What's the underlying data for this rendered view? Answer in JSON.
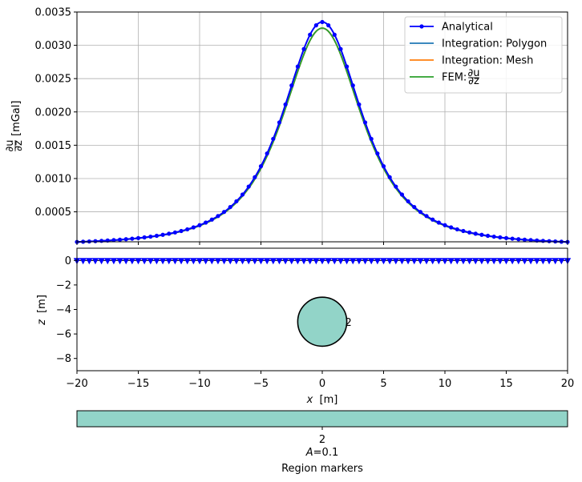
{
  "chart_data": [
    {
      "type": "line",
      "ylabel_num": "∂u",
      "ylabel_den": "∂z",
      "ylabel_unit": "[mGal]",
      "xlim": [
        -20,
        20
      ],
      "ylim": [
        5e-05,
        0.0035
      ],
      "yticks": [
        "0.0005",
        "0.0010",
        "0.0015",
        "0.0020",
        "0.0025",
        "0.0030",
        "0.0035"
      ],
      "ytick_values": [
        0.0005,
        0.001,
        0.0015,
        0.002,
        0.0025,
        0.003,
        0.0035
      ],
      "xtick_values": [
        -20,
        -15,
        -10,
        -5,
        0,
        5,
        10,
        15,
        20
      ],
      "grid": true,
      "legend_position": "top-right",
      "series": [
        {
          "name": "Analytical",
          "color": "#0000ff",
          "marker": "dot",
          "scale": 1.0,
          "peak": 0.00335
        },
        {
          "name": "Integration: Polygon",
          "color": "#1f77b4",
          "marker": "none",
          "scale": 0.9725,
          "peak": 0.003258
        },
        {
          "name": "Integration: Mesh",
          "color": "#ff7f0e",
          "marker": "none",
          "scale": 0.9725,
          "peak": 0.003258
        },
        {
          "name": "FEM: ",
          "name_frac_num": "∂u",
          "name_frac_den": "∂z",
          "color": "#2ca02c",
          "marker": "none",
          "scale": 0.9725,
          "peak": 0.003258
        }
      ],
      "model": {
        "source_depth": 5,
        "x_min": -20,
        "x_max": 20,
        "n_points": 81
      }
    },
    {
      "type": "scatter",
      "xlabel": "x",
      "xlabel_unit": "[m]",
      "ylabel": "z",
      "ylabel_unit": "[m]",
      "xlim": [
        -20,
        20
      ],
      "ylim": [
        -9,
        1
      ],
      "xticks": [
        "−20",
        "−15",
        "−10",
        "−5",
        "0",
        "5",
        "10",
        "15",
        "20"
      ],
      "xtick_values": [
        -20,
        -15,
        -10,
        -5,
        0,
        5,
        10,
        15,
        20
      ],
      "yticks": [
        "0",
        "−2",
        "−4",
        "−6",
        "−8"
      ],
      "ytick_values": [
        0,
        -2,
        -4,
        -6,
        -8
      ],
      "sensor_marker_color": "#0000ff",
      "sensor_count": 81,
      "circle": {
        "cx": 0,
        "cz": -5,
        "r": 2,
        "fill": "#92d4c8",
        "edge": "#000000"
      },
      "region_label": "2",
      "region_label_color": "#cc33cc",
      "colorbar": {
        "color": "#92d4c8",
        "tick": "2",
        "annotation_var": "A",
        "annotation_value": "=0.1",
        "label": "Region markers"
      }
    }
  ]
}
